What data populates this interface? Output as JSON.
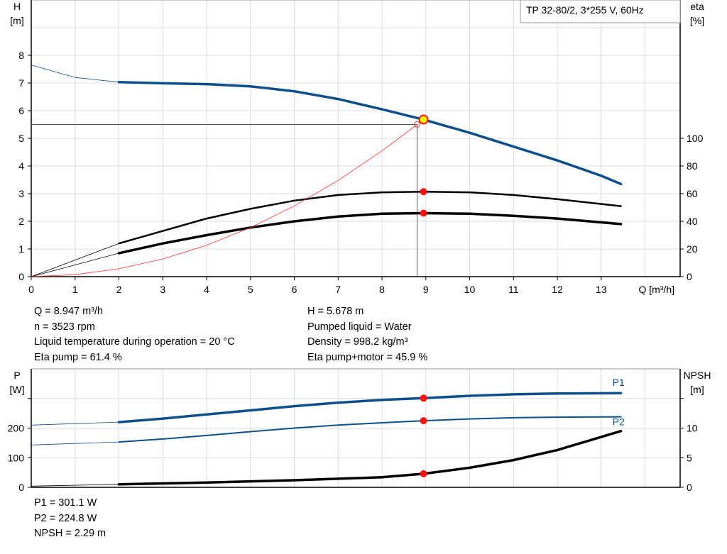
{
  "chart_data": [
    {
      "type": "line",
      "title": "TP 32-80/2, 3*255 V, 60Hz",
      "xlabel": "Q [m³/h]",
      "ylabel_left": [
        "H",
        "[m]"
      ],
      "ylabel_right": [
        "eta",
        "[%]"
      ],
      "xlim": [
        0,
        14.8
      ],
      "ylim_left": [
        0,
        10
      ],
      "ylim_right": [
        0,
        200
      ],
      "xticks": [
        "0",
        "1",
        "2",
        "3",
        "4",
        "5",
        "6",
        "7",
        "8",
        "9",
        "10",
        "11",
        "12",
        "13"
      ],
      "yticks_left": [
        "0",
        "1",
        "2",
        "3",
        "4",
        "5",
        "6",
        "7",
        "8"
      ],
      "yticks_right": [
        "0",
        "20",
        "40",
        "60",
        "80",
        "100"
      ],
      "grid": true,
      "series": [
        {
          "key": "H",
          "axis": "left",
          "color": "#0d4f8b",
          "thick_from": 2,
          "x": [
            0,
            1,
            2,
            3,
            4,
            5,
            6,
            7,
            8,
            8.947,
            10,
            11,
            12,
            13,
            13.45
          ],
          "y": [
            7.65,
            7.2,
            7.03,
            6.99,
            6.96,
            6.88,
            6.7,
            6.42,
            6.05,
            5.678,
            5.2,
            4.7,
            4.2,
            3.65,
            3.35
          ]
        },
        {
          "key": "eta_pump",
          "axis": "right",
          "color": "#000000",
          "thick_from": 2,
          "x": [
            0,
            2,
            3,
            4,
            5,
            6,
            7,
            8,
            8.947,
            10,
            11,
            12,
            13.45
          ],
          "y": [
            0,
            24,
            33,
            42,
            49,
            55,
            59,
            61,
            61.4,
            61,
            59,
            56,
            51
          ]
        },
        {
          "key": "eta_pump_motor",
          "axis": "right",
          "color": "#000000",
          "thick_from": 2,
          "x": [
            0,
            2,
            3,
            4,
            5,
            6,
            7,
            8,
            8.947,
            10,
            11,
            12,
            13.45
          ],
          "y": [
            0,
            17,
            24,
            30,
            35.5,
            40,
            43.5,
            45.5,
            45.9,
            45.5,
            44,
            42,
            38
          ]
        },
        {
          "key": "system_curve",
          "axis": "left",
          "color": "#ff3030",
          "x": [
            0,
            1,
            2,
            3,
            4,
            5,
            6,
            7,
            8,
            8.8
          ],
          "y": [
            0,
            0.071,
            0.284,
            0.639,
            1.136,
            1.775,
            2.557,
            3.48,
            4.545,
            5.5
          ]
        }
      ],
      "duty_point": {
        "x": 8.8,
        "y": 5.5
      },
      "operating_point": {
        "x": 8.947,
        "H": 5.678,
        "eta_pump": 61.4,
        "eta_pump_motor": 45.9
      }
    },
    {
      "type": "line",
      "ylabel_left": [
        "P",
        "[W]"
      ],
      "ylabel_right": [
        "NPSH",
        "[m]"
      ],
      "xlim": [
        0,
        14.8
      ],
      "ylim_left": [
        0,
        400
      ],
      "ylim_right": [
        0,
        20
      ],
      "yticks_left": [
        "0",
        "100",
        "200"
      ],
      "yticks_right": [
        "0",
        "5",
        "10"
      ],
      "grid": true,
      "series": [
        {
          "name": "P1",
          "axis": "left",
          "color": "#0d4f8b",
          "thick_from": 2,
          "x": [
            0,
            2,
            3,
            4,
            5,
            6,
            7,
            8,
            8.947,
            10,
            11,
            12,
            13.45
          ],
          "y": [
            210,
            220,
            232,
            246,
            260,
            274,
            286,
            295,
            301.1,
            309,
            314,
            317,
            318
          ]
        },
        {
          "name": "P2",
          "axis": "left",
          "color": "#0d4f8b",
          "thick_from": 2,
          "x": [
            0,
            2,
            3,
            4,
            5,
            6,
            7,
            8,
            8.947,
            10,
            11,
            12,
            13.45
          ],
          "y": [
            143,
            153,
            163,
            175,
            188,
            200,
            210,
            218,
            224.8,
            231,
            235,
            237,
            238
          ]
        },
        {
          "key": "NPSH",
          "axis": "right",
          "color": "#000000",
          "thick_from": 2,
          "x": [
            0,
            2,
            4,
            6,
            8,
            8.947,
            10,
            11,
            12,
            13.45
          ],
          "y": [
            0.2,
            0.5,
            0.8,
            1.2,
            1.7,
            2.29,
            3.3,
            4.6,
            6.3,
            9.5
          ]
        }
      ],
      "operating_point": {
        "x": 8.947,
        "P1": 301.1,
        "P2": 224.8,
        "NPSH": 2.29
      }
    }
  ],
  "readout_top": {
    "left": [
      "Q = 8.947 m³/h",
      "n = 3523 rpm",
      "Liquid temperature during operation = 20 °C",
      "Eta pump = 61.4 %"
    ],
    "right": [
      "H = 5.678 m",
      "Pumped liquid = Water",
      "Density = 998.2 kg/m³",
      "Eta pump+motor = 45.9 %"
    ]
  },
  "readout_bottom": [
    "P1 = 301.1 W",
    "P2 = 224.8 W",
    "NPSH = 2.29 m"
  ]
}
